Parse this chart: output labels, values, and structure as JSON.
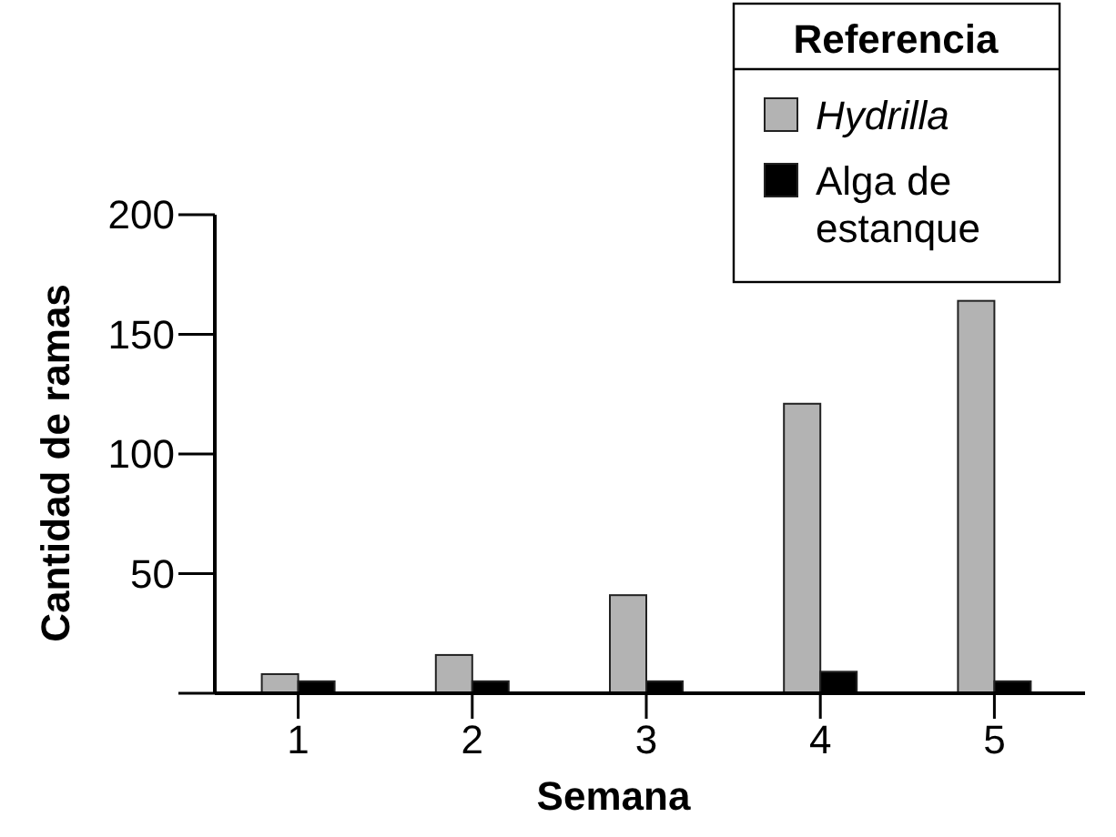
{
  "chart_data": {
    "type": "bar",
    "xlabel": "Semana",
    "ylabel": "Cantidad de ramas",
    "legend_title": "Referencia",
    "legend": "top right",
    "categories": [
      "1",
      "2",
      "3",
      "4",
      "5"
    ],
    "series": [
      {
        "name": "Hydrilla",
        "color": "#b3b3b3",
        "values": [
          8,
          16,
          41,
          121,
          164
        ]
      },
      {
        "name": "Alga de estanque",
        "color": "#000000",
        "values": [
          5,
          5,
          5,
          9,
          5
        ]
      }
    ],
    "ylim": [
      0,
      200
    ],
    "yticks": [
      {
        "value": 0,
        "label": null
      },
      50,
      100,
      150,
      200
    ],
    "grid": false
  }
}
